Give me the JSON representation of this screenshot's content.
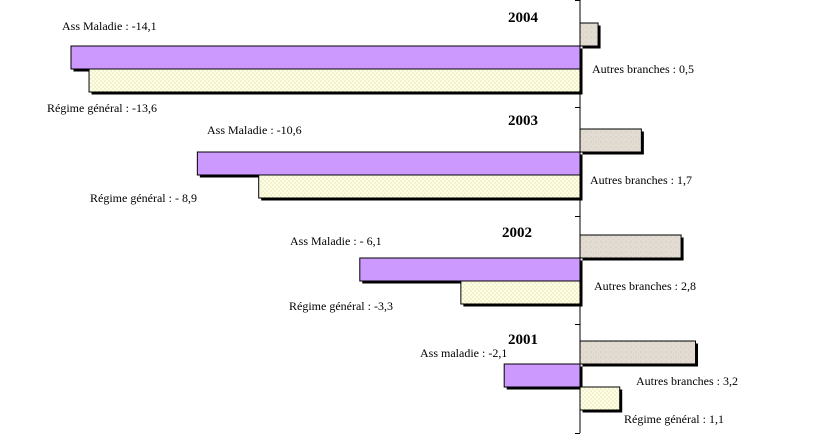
{
  "chart_data": {
    "type": "bar",
    "orientation": "horizontal",
    "categories": [
      "2004",
      "2003",
      "2002",
      "2001"
    ],
    "series": [
      {
        "key": "autres",
        "color": "#e2dcd2",
        "values": [
          0.5,
          1.7,
          2.8,
          3.2
        ],
        "labels": [
          "Autres branches : 0,5",
          "Autres branches : 1,7",
          "Autres branches : 2,8",
          "Autres branches : 3,2"
        ]
      },
      {
        "key": "ass",
        "color": "#cc99ff",
        "values": [
          -14.1,
          -10.6,
          -6.1,
          -2.1
        ],
        "labels": [
          "Ass Maladie : -14,1",
          "Ass Maladie : -10,6",
          "Ass Maladie : - 6,1",
          "Ass maladie : -2,1"
        ]
      },
      {
        "key": "regime",
        "color": "#ffffe6",
        "values": [
          -13.6,
          -8.9,
          -3.3,
          1.1
        ],
        "labels": [
          "Régime général  : -13,6",
          "Régime général  : - 8,9",
          "Régime général : -3,3",
          "Régime général : 1,1"
        ]
      }
    ],
    "title": "",
    "xlabel": "",
    "ylabel": "",
    "grid": false,
    "legend": "none"
  }
}
